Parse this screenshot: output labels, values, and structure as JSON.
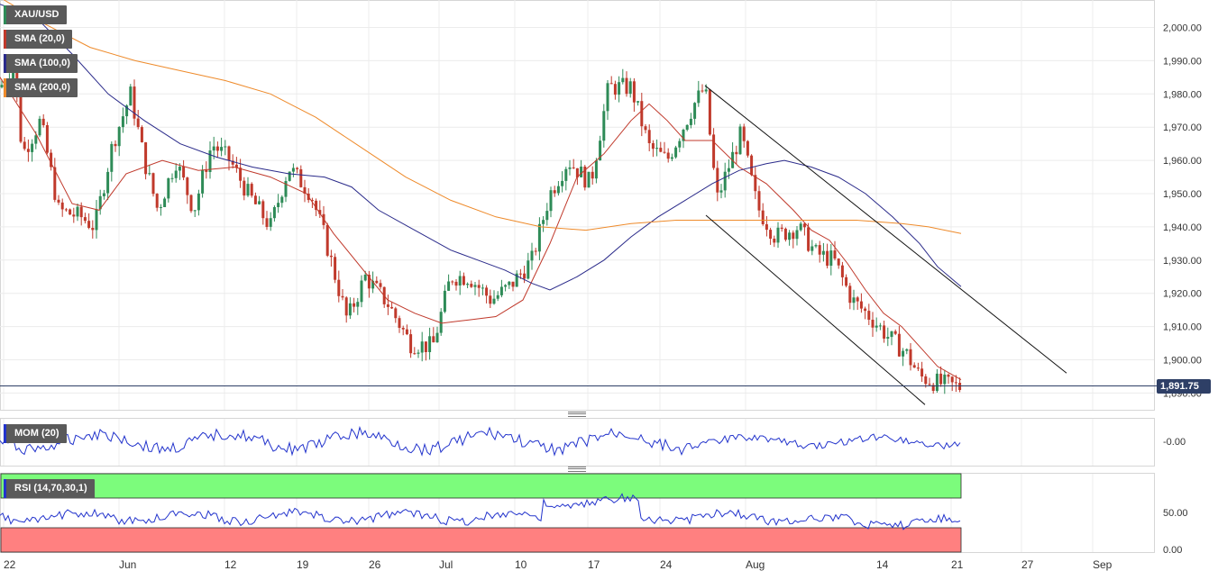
{
  "chart_data": [
    {
      "type": "candlestick",
      "symbol": "XAU/USD",
      "last_price": "1,891.75",
      "ylim": [
        1885,
        2008
      ],
      "y_ticks": [
        "2,000.00",
        "1,990.00",
        "1,980.00",
        "1,970.00",
        "1,960.00",
        "1,950.00",
        "1,940.00",
        "1,930.00",
        "1,920.00",
        "1,910.00",
        "1,900.00",
        "1,890.00"
      ],
      "x_ticks": [
        "22",
        "Jun",
        "12",
        "19",
        "26",
        "Jul",
        "10",
        "17",
        "24",
        "Aug",
        "14",
        "21",
        "27",
        "Sep"
      ],
      "indicators": [
        {
          "name": "SMA (20,0)",
          "color": "#c0392b",
          "points": [
            [
              0,
              1985
            ],
            [
              40,
              1968
            ],
            [
              80,
              1947
            ],
            [
              110,
              1945
            ],
            [
              140,
              1956
            ],
            [
              180,
              1960
            ],
            [
              220,
              1957
            ],
            [
              260,
              1958
            ],
            [
              300,
              1955
            ],
            [
              340,
              1950
            ],
            [
              370,
              1938
            ],
            [
              400,
              1928
            ],
            [
              430,
              1918
            ],
            [
              460,
              1914
            ],
            [
              490,
              1911
            ],
            [
              520,
              1912
            ],
            [
              550,
              1913
            ],
            [
              580,
              1918
            ],
            [
              610,
              1935
            ],
            [
              640,
              1955
            ],
            [
              670,
              1962
            ],
            [
              700,
              1972
            ],
            [
              720,
              1977
            ],
            [
              740,
              1972
            ],
            [
              760,
              1966
            ],
            [
              790,
              1966
            ],
            [
              820,
              1958
            ],
            [
              850,
              1953
            ],
            [
              880,
              1945
            ],
            [
              900,
              1939
            ],
            [
              920,
              1936
            ],
            [
              940,
              1929
            ],
            [
              960,
              1921
            ],
            [
              980,
              1914
            ],
            [
              1000,
              1910
            ],
            [
              1020,
              1904
            ],
            [
              1040,
              1898
            ],
            [
              1066,
              1894
            ]
          ]
        },
        {
          "name": "SMA (100,0)",
          "color": "#2a2a8a",
          "points": [
            [
              0,
              2007
            ],
            [
              40,
              2003
            ],
            [
              80,
              1992
            ],
            [
              120,
              1980
            ],
            [
              160,
              1972
            ],
            [
              200,
              1965
            ],
            [
              240,
              1961
            ],
            [
              280,
              1958
            ],
            [
              320,
              1956
            ],
            [
              360,
              1955
            ],
            [
              390,
              1952
            ],
            [
              420,
              1945
            ],
            [
              460,
              1939
            ],
            [
              500,
              1933
            ],
            [
              530,
              1930
            ],
            [
              560,
              1927
            ],
            [
              590,
              1923
            ],
            [
              610,
              1921
            ],
            [
              640,
              1925
            ],
            [
              670,
              1930
            ],
            [
              700,
              1937
            ],
            [
              730,
              1943
            ],
            [
              760,
              1948
            ],
            [
              790,
              1953
            ],
            [
              820,
              1957
            ],
            [
              850,
              1959
            ],
            [
              870,
              1960
            ],
            [
              900,
              1958
            ],
            [
              930,
              1955
            ],
            [
              960,
              1950
            ],
            [
              990,
              1943
            ],
            [
              1020,
              1935
            ],
            [
              1040,
              1928
            ],
            [
              1066,
              1922
            ]
          ]
        },
        {
          "name": "SMA (200,0)",
          "color": "#ee8a2a",
          "points": [
            [
              0,
              2009
            ],
            [
              50,
              2001
            ],
            [
              100,
              1994
            ],
            [
              150,
              1990
            ],
            [
              200,
              1987
            ],
            [
              250,
              1984
            ],
            [
              300,
              1980
            ],
            [
              350,
              1973
            ],
            [
              400,
              1964
            ],
            [
              450,
              1955
            ],
            [
              500,
              1948
            ],
            [
              550,
              1943
            ],
            [
              600,
              1940
            ],
            [
              650,
              1939
            ],
            [
              700,
              1941
            ],
            [
              750,
              1942
            ],
            [
              800,
              1942
            ],
            [
              850,
              1942
            ],
            [
              900,
              1942
            ],
            [
              950,
              1942
            ],
            [
              1000,
              1941
            ],
            [
              1030,
              1940
            ],
            [
              1066,
              1938
            ]
          ]
        }
      ],
      "channel_lines": [
        {
          "from": [
            782,
            1982.5
          ],
          "to": [
            1183,
            1896
          ]
        },
        {
          "from": [
            783,
            1943.5
          ],
          "to": [
            1026,
            1886.5
          ]
        }
      ]
    },
    {
      "type": "line",
      "name": "MOM (20)",
      "y_tick": "-0.00"
    },
    {
      "type": "line",
      "name": "RSI (14,70,30,1)",
      "y_ticks": [
        "50.00",
        "0.00"
      ],
      "ylim": [
        0,
        100
      ],
      "overbought": 70,
      "oversold": 30
    }
  ]
}
